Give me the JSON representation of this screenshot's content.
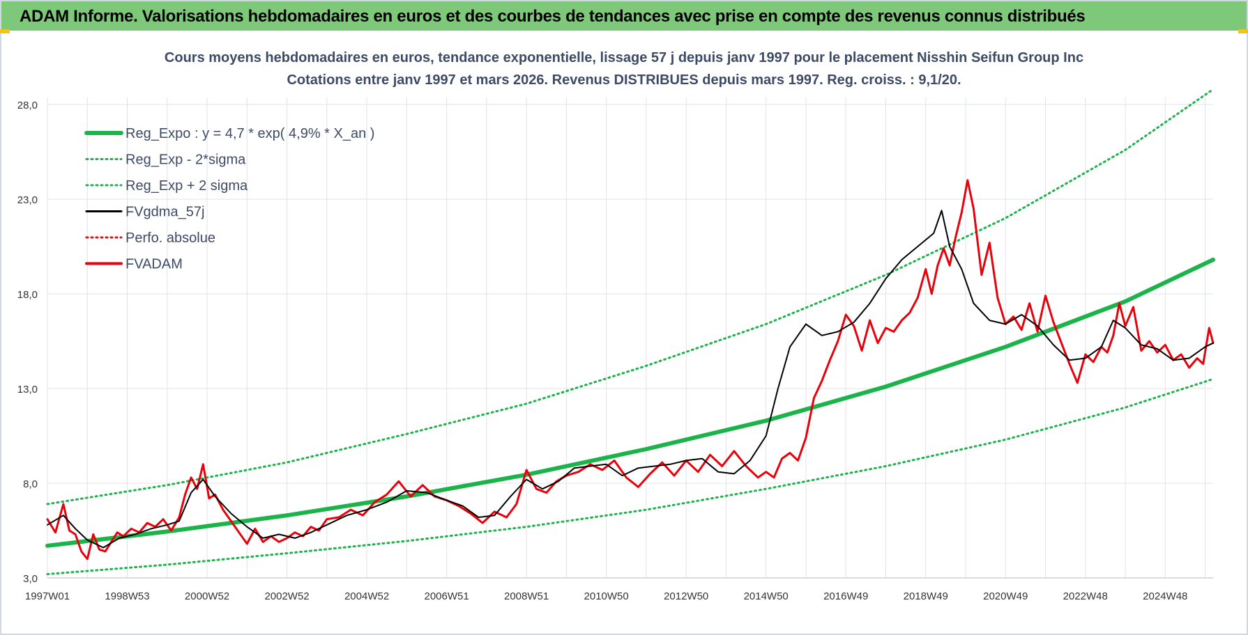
{
  "header": {
    "title": "ADAM Informe. Valorisations hebdomadaires en euros et des courbes de tendances avec prise en compte des revenus connus distribués"
  },
  "chart_data": {
    "type": "line",
    "title": "Cours moyens hebdomadaires en euros, tendance exponentielle, lissage 57 j depuis janv 1997  pour le placement Nisshin Seifun Group Inc",
    "subtitle": "Cotations entre janv 1997 et mars 2026. Revenus DISTRIBUES depuis mars 1997.  Reg. croiss. : 9,1/20.",
    "xlim": [
      1997.0,
      2026.2
    ],
    "ylim": [
      3.0,
      28.0
    ],
    "grid": true,
    "legend_position": "top-left",
    "x_ticks": [
      {
        "x": 1997.0,
        "label": "1997W01"
      },
      {
        "x": 1999.0,
        "label": "1998W53"
      },
      {
        "x": 2001.0,
        "label": "2000W52"
      },
      {
        "x": 2003.0,
        "label": "2002W52"
      },
      {
        "x": 2005.0,
        "label": "2004W52"
      },
      {
        "x": 2007.0,
        "label": "2006W51"
      },
      {
        "x": 2009.0,
        "label": "2008W51"
      },
      {
        "x": 2011.0,
        "label": "2010W50"
      },
      {
        "x": 2013.0,
        "label": "2012W50"
      },
      {
        "x": 2015.0,
        "label": "2014W50"
      },
      {
        "x": 2017.0,
        "label": "2016W49"
      },
      {
        "x": 2019.0,
        "label": "2018W49"
      },
      {
        "x": 2021.0,
        "label": "2020W49"
      },
      {
        "x": 2023.0,
        "label": "2022W48"
      },
      {
        "x": 2025.0,
        "label": "2024W48"
      }
    ],
    "y_ticks": [
      {
        "y": 3.0,
        "label": "3,0"
      },
      {
        "y": 8.0,
        "label": "8,0"
      },
      {
        "y": 13.0,
        "label": "13,0"
      },
      {
        "y": 18.0,
        "label": "18,0"
      },
      {
        "y": 23.0,
        "label": "23,0"
      },
      {
        "y": 28.0,
        "label": "28,0"
      }
    ],
    "series": [
      {
        "name": "Reg_Expo : y = 4,7 * exp( 4,9% *  X_an )",
        "color": "#1db34b",
        "style": "solid-thick",
        "x": [
          1997.0,
          2000.0,
          2003.0,
          2006.0,
          2009.0,
          2012.0,
          2015.0,
          2018.0,
          2021.0,
          2024.0,
          2026.2
        ],
        "values": [
          4.7,
          5.45,
          6.3,
          7.3,
          8.45,
          9.8,
          11.3,
          13.1,
          15.2,
          17.6,
          19.8
        ]
      },
      {
        "name": "Reg_Exp - 2*sigma",
        "color": "#1db34b",
        "style": "dotted",
        "x": [
          1997.0,
          2000.0,
          2003.0,
          2006.0,
          2009.0,
          2012.0,
          2015.0,
          2018.0,
          2021.0,
          2024.0,
          2026.2
        ],
        "values": [
          3.2,
          3.7,
          4.3,
          4.95,
          5.7,
          6.6,
          7.7,
          8.9,
          10.3,
          12.0,
          13.5
        ]
      },
      {
        "name": "Reg_Exp + 2 sigma",
        "color": "#1db34b",
        "style": "dotted",
        "x": [
          1997.0,
          2000.0,
          2003.0,
          2006.0,
          2009.0,
          2012.0,
          2015.0,
          2018.0,
          2021.0,
          2024.0,
          2026.2
        ],
        "values": [
          6.9,
          7.9,
          9.1,
          10.6,
          12.2,
          14.2,
          16.4,
          19.0,
          22.0,
          25.6,
          28.8
        ]
      },
      {
        "name": "FVgdma_57j",
        "color": "#000000",
        "style": "solid",
        "x": [
          1997.0,
          1997.4,
          1997.7,
          1998.0,
          1998.4,
          1998.8,
          1999.2,
          1999.6,
          2000.0,
          2000.3,
          2000.6,
          2000.9,
          2001.2,
          2001.6,
          2002.0,
          2002.4,
          2002.8,
          2003.2,
          2003.6,
          2004.0,
          2004.5,
          2005.0,
          2005.5,
          2006.0,
          2006.5,
          2007.0,
          2007.4,
          2007.8,
          2008.2,
          2008.6,
          2009.0,
          2009.4,
          2009.8,
          2010.2,
          2010.6,
          2011.0,
          2011.4,
          2011.8,
          2012.2,
          2012.6,
          2013.0,
          2013.4,
          2013.8,
          2014.2,
          2014.6,
          2015.0,
          2015.3,
          2015.6,
          2016.0,
          2016.4,
          2016.8,
          2017.2,
          2017.6,
          2018.0,
          2018.4,
          2018.8,
          2019.2,
          2019.4,
          2019.6,
          2019.9,
          2020.2,
          2020.6,
          2021.0,
          2021.4,
          2021.8,
          2022.2,
          2022.6,
          2023.0,
          2023.4,
          2023.7,
          2024.0,
          2024.4,
          2024.8,
          2025.2,
          2025.6,
          2026.0,
          2026.2
        ],
        "values": [
          5.8,
          6.3,
          5.6,
          5.0,
          4.6,
          5.1,
          5.3,
          5.6,
          5.8,
          6.0,
          7.5,
          8.2,
          7.3,
          6.4,
          5.7,
          5.1,
          5.3,
          5.1,
          5.4,
          5.8,
          6.3,
          6.6,
          7.0,
          7.6,
          7.5,
          7.1,
          6.8,
          6.2,
          6.3,
          7.3,
          8.2,
          7.7,
          8.1,
          8.8,
          8.9,
          9.0,
          8.4,
          8.8,
          8.9,
          9.0,
          9.2,
          9.3,
          8.6,
          8.5,
          9.2,
          10.5,
          13.0,
          15.2,
          16.4,
          15.8,
          16.0,
          16.5,
          17.5,
          18.8,
          19.8,
          20.5,
          21.2,
          22.4,
          20.5,
          19.3,
          17.5,
          16.6,
          16.4,
          16.9,
          16.3,
          15.3,
          14.5,
          14.6,
          15.2,
          16.6,
          16.2,
          15.3,
          15.1,
          14.5,
          14.6,
          15.2,
          15.4
        ]
      },
      {
        "name": "Perfo. absolue",
        "color": "#e01010",
        "style": "dotted",
        "x": [],
        "values": []
      },
      {
        "name": "FVADAM",
        "color": "#e8000b",
        "style": "solid-thick",
        "x": [
          1997.0,
          1997.2,
          1997.4,
          1997.55,
          1997.7,
          1997.85,
          1998.0,
          1998.15,
          1998.3,
          1998.45,
          1998.6,
          1998.75,
          1998.9,
          1999.1,
          1999.3,
          1999.5,
          1999.7,
          1999.9,
          2000.1,
          2000.3,
          2000.45,
          2000.6,
          2000.75,
          2000.9,
          2001.05,
          2001.2,
          2001.4,
          2001.6,
          2001.8,
          2002.0,
          2002.2,
          2002.4,
          2002.6,
          2002.8,
          2003.0,
          2003.2,
          2003.4,
          2003.6,
          2003.8,
          2004.0,
          2004.3,
          2004.6,
          2004.9,
          2005.2,
          2005.5,
          2005.8,
          2006.1,
          2006.4,
          2006.7,
          2007.0,
          2007.3,
          2007.6,
          2007.9,
          2008.2,
          2008.5,
          2008.75,
          2009.0,
          2009.25,
          2009.5,
          2009.75,
          2010.0,
          2010.3,
          2010.6,
          2010.9,
          2011.2,
          2011.5,
          2011.8,
          2012.1,
          2012.4,
          2012.7,
          2013.0,
          2013.3,
          2013.6,
          2013.9,
          2014.2,
          2014.5,
          2014.8,
          2015.0,
          2015.2,
          2015.4,
          2015.6,
          2015.8,
          2016.0,
          2016.2,
          2016.4,
          2016.6,
          2016.8,
          2017.0,
          2017.2,
          2017.4,
          2017.6,
          2017.8,
          2018.0,
          2018.2,
          2018.4,
          2018.6,
          2018.8,
          2019.0,
          2019.15,
          2019.3,
          2019.45,
          2019.6,
          2019.75,
          2019.9,
          2020.05,
          2020.2,
          2020.4,
          2020.6,
          2020.8,
          2021.0,
          2021.2,
          2021.4,
          2021.6,
          2021.8,
          2022.0,
          2022.2,
          2022.4,
          2022.6,
          2022.8,
          2023.0,
          2023.2,
          2023.4,
          2023.55,
          2023.7,
          2023.85,
          2024.0,
          2024.2,
          2024.4,
          2024.6,
          2024.8,
          2025.0,
          2025.2,
          2025.4,
          2025.6,
          2025.8,
          2025.95,
          2026.1,
          2026.2
        ],
        "values": [
          6.1,
          5.4,
          6.9,
          5.5,
          5.3,
          4.4,
          4.0,
          5.3,
          4.5,
          4.4,
          4.9,
          5.4,
          5.2,
          5.6,
          5.4,
          5.9,
          5.7,
          6.1,
          5.5,
          6.2,
          7.4,
          8.3,
          7.7,
          9.0,
          7.2,
          7.4,
          6.6,
          6.0,
          5.4,
          4.8,
          5.6,
          4.9,
          5.2,
          4.9,
          5.1,
          5.4,
          5.2,
          5.7,
          5.5,
          6.1,
          6.2,
          6.6,
          6.3,
          7.0,
          7.4,
          8.1,
          7.3,
          7.9,
          7.3,
          7.1,
          6.8,
          6.4,
          5.9,
          6.5,
          6.2,
          6.9,
          8.7,
          7.7,
          7.5,
          8.1,
          8.4,
          8.6,
          9.0,
          8.7,
          9.2,
          8.3,
          7.8,
          8.5,
          9.1,
          8.4,
          9.2,
          8.6,
          9.5,
          8.9,
          9.7,
          8.9,
          8.3,
          8.6,
          8.3,
          9.3,
          9.6,
          9.2,
          10.4,
          12.5,
          13.4,
          14.5,
          15.5,
          16.9,
          16.3,
          15.0,
          16.6,
          15.4,
          16.2,
          16.0,
          16.6,
          17.0,
          17.8,
          19.3,
          18.0,
          19.5,
          20.4,
          19.5,
          21.0,
          22.3,
          24.0,
          22.5,
          19.0,
          20.7,
          17.8,
          16.4,
          16.8,
          16.1,
          17.5,
          16.0,
          17.9,
          16.5,
          15.4,
          14.3,
          13.3,
          14.8,
          14.4,
          15.2,
          14.9,
          15.8,
          17.5,
          16.3,
          17.3,
          15.0,
          15.5,
          14.9,
          15.3,
          14.5,
          14.8,
          14.1,
          14.6,
          14.3,
          16.2,
          15.4
        ]
      }
    ]
  }
}
